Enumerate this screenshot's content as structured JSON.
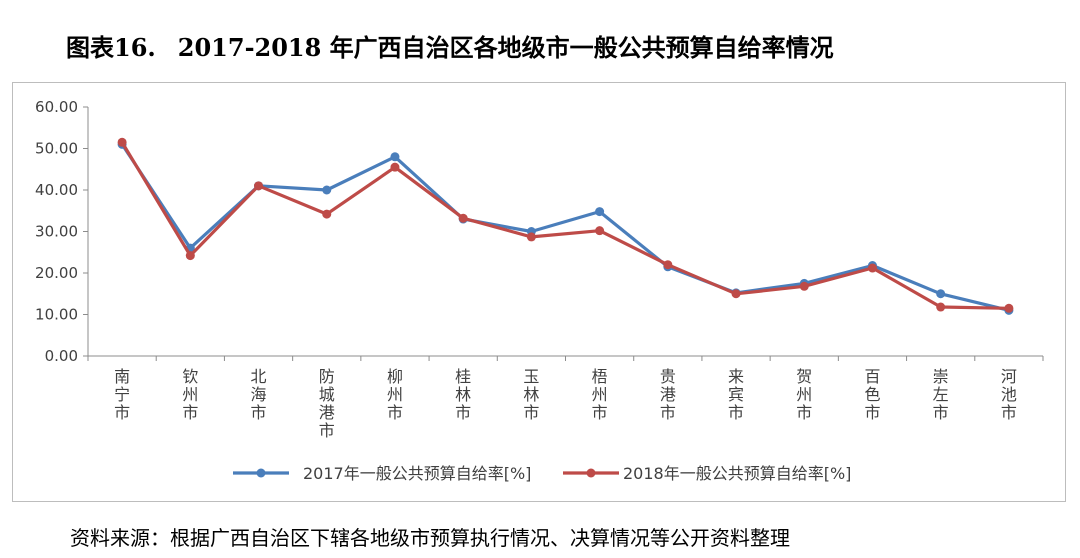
{
  "header": {
    "figure_label": "图表16.",
    "title": "2017-2018 年广西自治区各地级市一般公共预算自给率情况"
  },
  "source": {
    "text": "资料来源：根据广西自治区下辖各地级市预算执行情况、决算情况等公开资料整理"
  },
  "chart_data": {
    "type": "line",
    "title": "",
    "xlabel": "",
    "ylabel": "",
    "categories": [
      "南宁市",
      "钦州市",
      "北海市",
      "防城港市",
      "柳州市",
      "桂林市",
      "玉林市",
      "梧州市",
      "贵港市",
      "来宾市",
      "贺州市",
      "百色市",
      "崇左市",
      "河池市"
    ],
    "ylim": [
      0,
      60
    ],
    "y_ticks": [
      "0.00",
      "10.00",
      "20.00",
      "30.00",
      "40.00",
      "50.00",
      "60.00"
    ],
    "grid": false,
    "legend_position": "bottom",
    "series": [
      {
        "name": "2017年一般公共预算自给率[%]",
        "color": "#4a7ebb",
        "values": [
          51.0,
          26.0,
          41.0,
          40.0,
          48.0,
          33.0,
          30.0,
          34.8,
          21.5,
          15.2,
          17.5,
          21.8,
          15.0,
          11.0
        ]
      },
      {
        "name": "2018年一般公共预算自给率[%]",
        "color": "#be4b48",
        "values": [
          51.5,
          24.2,
          41.0,
          34.2,
          45.5,
          33.2,
          28.7,
          30.2,
          22.0,
          15.0,
          16.8,
          21.2,
          11.8,
          11.5
        ]
      }
    ]
  }
}
